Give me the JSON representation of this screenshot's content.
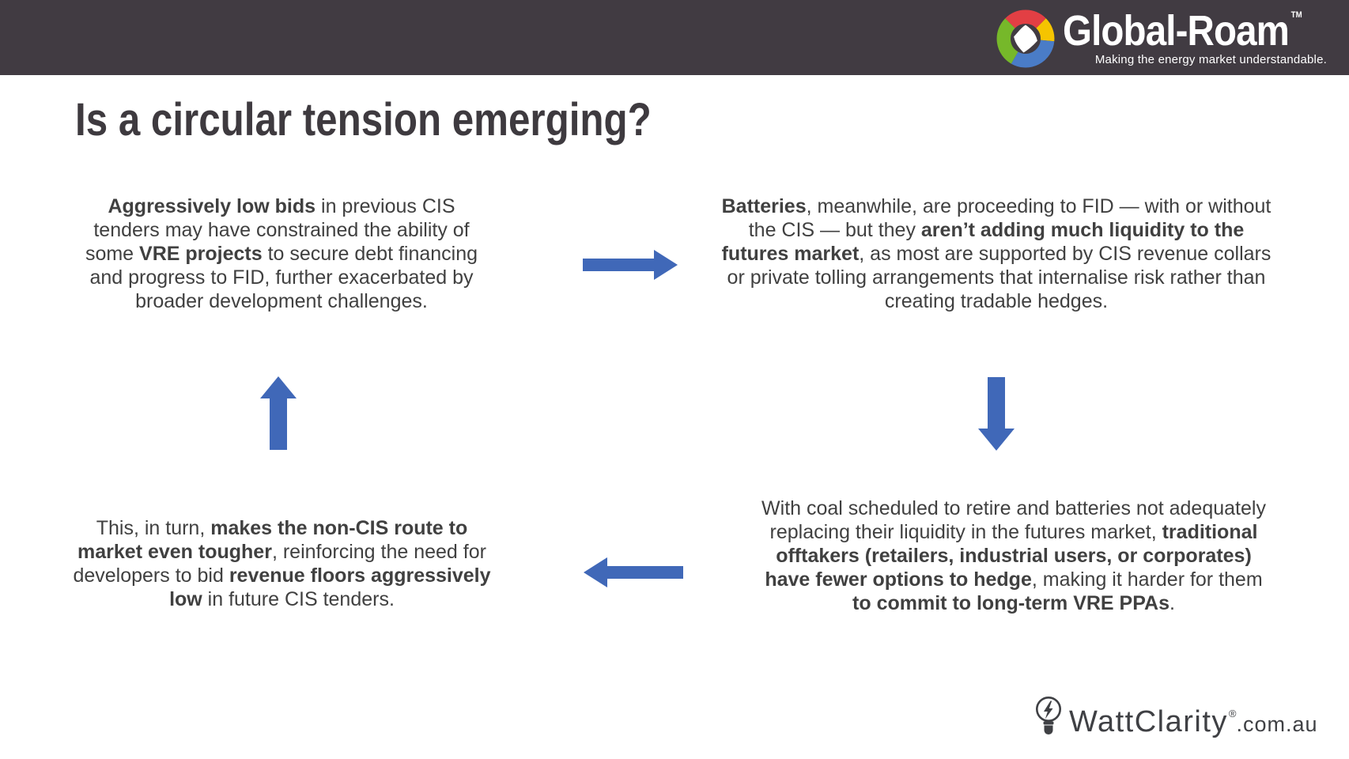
{
  "header": {
    "bg_color": "#413B42",
    "logo": {
      "brand": "Global-Roam",
      "trademark": "TM",
      "tagline": "Making the energy market understandable.",
      "icon": "global-roam-ring-icon",
      "icon_colors": {
        "red": "#E23F44",
        "yellow": "#F5C400",
        "blue": "#4A7CC7",
        "green": "#76B82A"
      }
    }
  },
  "title": "Is a circular tension emerging?",
  "colors": {
    "arrow": "#4068B8",
    "body_text": "#404040",
    "title_text": "#3E3A3F"
  },
  "cycle": {
    "blocks": [
      {
        "position": "top-left",
        "runs": [
          {
            "text": "Aggressively low bids",
            "bold": true
          },
          {
            "text": " in previous CIS tenders may have constrained the ability of some ",
            "bold": false
          },
          {
            "text": "VRE projects",
            "bold": true
          },
          {
            "text": " to secure debt financing and progress to FID, further exacerbated by broader development challenges.",
            "bold": false
          }
        ]
      },
      {
        "position": "top-right",
        "runs": [
          {
            "text": "Batteries",
            "bold": true
          },
          {
            "text": ", meanwhile, are proceeding to FID — with or without the CIS — but they ",
            "bold": false
          },
          {
            "text": "aren’t adding much liquidity to the futures market",
            "bold": true
          },
          {
            "text": ", as most are supported by CIS revenue collars or private tolling arrangements that internalise risk rather than creating tradable hedges.",
            "bold": false
          }
        ]
      },
      {
        "position": "bottom-right",
        "runs": [
          {
            "text": "With coal scheduled to retire and batteries not adequately replacing their liquidity in the futures market, ",
            "bold": false
          },
          {
            "text": "traditional offtakers (retailers, industrial users, or corporates) have fewer options to hedge",
            "bold": true
          },
          {
            "text": ", making it harder for them ",
            "bold": false
          },
          {
            "text": "to commit to long-term VRE PPAs",
            "bold": true
          },
          {
            "text": ".",
            "bold": false
          }
        ]
      },
      {
        "position": "bottom-left",
        "runs": [
          {
            "text": "This, in turn, ",
            "bold": false
          },
          {
            "text": "makes the non-CIS route to market even tougher",
            "bold": true
          },
          {
            "text": ", reinforcing the need for developers to bid ",
            "bold": false
          },
          {
            "text": "revenue floors aggressively low",
            "bold": true
          },
          {
            "text": " in future CIS tenders.",
            "bold": false
          }
        ]
      }
    ],
    "arrows": [
      {
        "icon": "flow-arrow-right-icon",
        "direction": "right"
      },
      {
        "icon": "flow-arrow-down-icon",
        "direction": "down"
      },
      {
        "icon": "flow-arrow-left-icon",
        "direction": "left"
      },
      {
        "icon": "flow-arrow-up-icon",
        "direction": "up"
      }
    ]
  },
  "footer": {
    "icon": "lightbulb-bolt-icon",
    "brand": "WattClarity",
    "registered": "®",
    "suffix": ".com.au"
  }
}
